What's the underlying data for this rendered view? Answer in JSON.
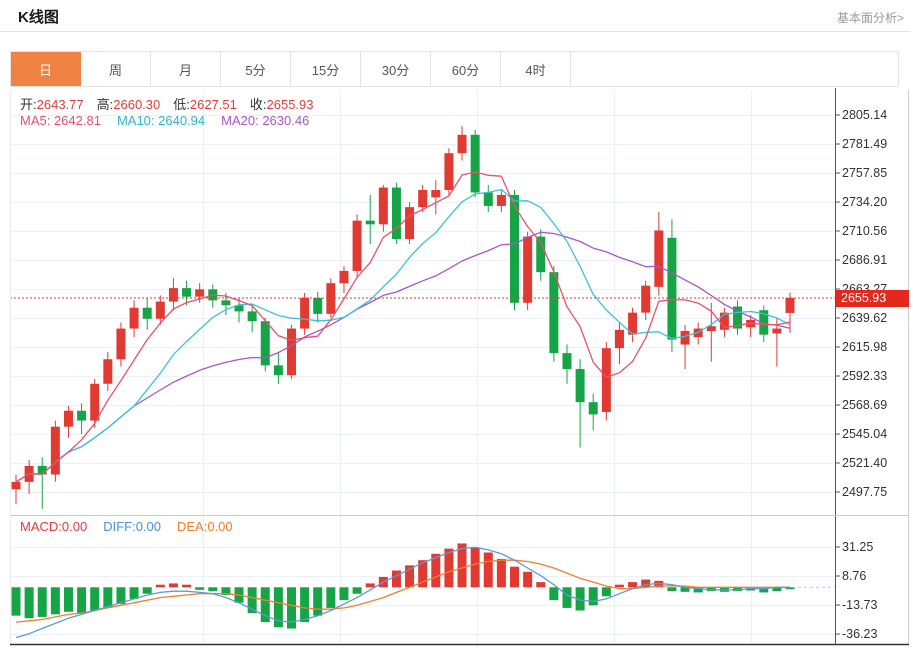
{
  "header": {
    "title": "K线图",
    "link": "基本面分析>"
  },
  "tabs": {
    "items": [
      "日",
      "周",
      "月",
      "5分",
      "15分",
      "30分",
      "60分",
      "4时"
    ],
    "active_index": 0
  },
  "ohlc": {
    "open_label": "开:",
    "open": "2643.77",
    "high_label": "高:",
    "high": "2660.30",
    "low_label": "低:",
    "low": "2627.51",
    "close_label": "收:",
    "close": "2655.93"
  },
  "ma": {
    "ma5": "MA5: 2642.81",
    "ma10": "MA10: 2640.94",
    "ma20": "MA20: 2630.46"
  },
  "macd_labels": {
    "macd": "MACD:0.00",
    "diff": "DIFF:0.00",
    "dea": "DEA:0.00"
  },
  "price_badge": "2655.93",
  "colors": {
    "up": "#e03a33",
    "down": "#16a447",
    "ma5": "#e8506e",
    "ma10": "#3cc2d4",
    "ma20": "#aa55c8",
    "diff_line": "#5b9bd5",
    "dea_line": "#ef8030",
    "accent_tab": "#f08343",
    "badge": "#e5281e",
    "grid": "#edf1f7",
    "axis": "#555555",
    "dotted_price": "#e23b3b",
    "zero_ext": "#8fd8e8"
  },
  "chart_data": {
    "type": "candlestick",
    "title": "K线图 (日)",
    "legend": [
      "MA5",
      "MA10",
      "MA20",
      "DIFF",
      "DEA",
      "MACD"
    ],
    "y_axis_ticks": [
      2805.14,
      2781.49,
      2757.85,
      2734.2,
      2710.56,
      2686.91,
      2663.27,
      2639.62,
      2615.98,
      2592.33,
      2568.69,
      2545.04,
      2521.4,
      2497.75
    ],
    "current_price": 2655.93,
    "ma_periods": [
      5,
      10,
      20
    ],
    "candles": [
      [
        2500,
        2512,
        2488,
        2506
      ],
      [
        2506,
        2524,
        2496,
        2519
      ],
      [
        2519,
        2526,
        2484,
        2512
      ],
      [
        2512,
        2556,
        2506,
        2551
      ],
      [
        2551,
        2568,
        2542,
        2564
      ],
      [
        2564,
        2570,
        2545,
        2556
      ],
      [
        2556,
        2590,
        2550,
        2586
      ],
      [
        2586,
        2612,
        2580,
        2606
      ],
      [
        2606,
        2636,
        2600,
        2631
      ],
      [
        2631,
        2654,
        2624,
        2648
      ],
      [
        2648,
        2656,
        2630,
        2639
      ],
      [
        2639,
        2658,
        2634,
        2653
      ],
      [
        2653,
        2672,
        2646,
        2664
      ],
      [
        2664,
        2670,
        2650,
        2657
      ],
      [
        2657,
        2668,
        2652,
        2663
      ],
      [
        2663,
        2667,
        2648,
        2654
      ],
      [
        2654,
        2660,
        2642,
        2650
      ],
      [
        2650,
        2656,
        2636,
        2645
      ],
      [
        2645,
        2650,
        2628,
        2637
      ],
      [
        2637,
        2640,
        2596,
        2601
      ],
      [
        2601,
        2612,
        2586,
        2593
      ],
      [
        2593,
        2634,
        2590,
        2631
      ],
      [
        2631,
        2660,
        2626,
        2656
      ],
      [
        2656,
        2661,
        2636,
        2643
      ],
      [
        2643,
        2672,
        2640,
        2668
      ],
      [
        2668,
        2682,
        2660,
        2678
      ],
      [
        2678,
        2724,
        2672,
        2719
      ],
      [
        2719,
        2740,
        2700,
        2716
      ],
      [
        2716,
        2748,
        2710,
        2746
      ],
      [
        2746,
        2750,
        2700,
        2704
      ],
      [
        2704,
        2734,
        2700,
        2730
      ],
      [
        2730,
        2748,
        2726,
        2744
      ],
      [
        2738,
        2752,
        2724,
        2744
      ],
      [
        2744,
        2778,
        2740,
        2774
      ],
      [
        2774,
        2796,
        2768,
        2789
      ],
      [
        2789,
        2793,
        2738,
        2742
      ],
      [
        2742,
        2748,
        2726,
        2731
      ],
      [
        2731,
        2744,
        2726,
        2740
      ],
      [
        2740,
        2744,
        2646,
        2652
      ],
      [
        2652,
        2710,
        2646,
        2706
      ],
      [
        2706,
        2712,
        2670,
        2677
      ],
      [
        2677,
        2682,
        2604,
        2611
      ],
      [
        2611,
        2618,
        2586,
        2598
      ],
      [
        2598,
        2606,
        2534,
        2571
      ],
      [
        2571,
        2578,
        2548,
        2561
      ],
      [
        2563,
        2620,
        2556,
        2615
      ],
      [
        2615,
        2636,
        2602,
        2630
      ],
      [
        2626,
        2648,
        2620,
        2644
      ],
      [
        2644,
        2670,
        2638,
        2666
      ],
      [
        2665,
        2726,
        2658,
        2711
      ],
      [
        2705,
        2720,
        2612,
        2622
      ],
      [
        2618,
        2634,
        2598,
        2629
      ],
      [
        2624,
        2636,
        2618,
        2631
      ],
      [
        2629,
        2652,
        2604,
        2633
      ],
      [
        2630,
        2648,
        2624,
        2644
      ],
      [
        2649,
        2654,
        2626,
        2631
      ],
      [
        2632,
        2642,
        2624,
        2638
      ],
      [
        2646,
        2650,
        2620,
        2626
      ],
      [
        2627,
        2640,
        2600,
        2631
      ],
      [
        2643.77,
        2660.3,
        2627.51,
        2655.93
      ]
    ],
    "macd": {
      "y_axis_ticks": [
        31.25,
        8.76,
        -13.73,
        -36.23
      ],
      "hist": [
        -22,
        -24,
        -23,
        -21,
        -19,
        -20,
        -18,
        -16,
        -13,
        -9,
        -5,
        2,
        3,
        2,
        -2,
        -3,
        -6,
        -12,
        -20,
        -27,
        -31,
        -32,
        -27,
        -22,
        -16,
        -10,
        -5,
        3,
        8,
        13,
        17,
        21,
        26,
        30,
        34,
        31,
        27,
        22,
        16,
        12,
        4,
        -10,
        -16,
        -18,
        -14,
        -7,
        2,
        4,
        6,
        5,
        -3,
        -3.5,
        -4,
        -3,
        -3.5,
        -3,
        -2.5,
        -4,
        -3,
        -1.5
      ],
      "diff": [
        -39,
        -36,
        -32,
        -28,
        -24,
        -21,
        -18,
        -15,
        -12,
        -9,
        -6,
        -4,
        -3,
        -3,
        -4,
        -5,
        -8,
        -12,
        -17,
        -22,
        -26,
        -27,
        -25,
        -22,
        -18,
        -13,
        -8,
        -2,
        4,
        9,
        14,
        19,
        23,
        27,
        30,
        31,
        29,
        26,
        21,
        15,
        9,
        2,
        -6,
        -10,
        -11,
        -9,
        -5,
        -1,
        2,
        3,
        2,
        0,
        -1,
        -2,
        -2,
        -2,
        -1,
        -1,
        0,
        0
      ],
      "dea": [
        -27,
        -26,
        -25,
        -23,
        -21,
        -20,
        -18,
        -16,
        -14,
        -12,
        -10,
        -8,
        -7,
        -6,
        -5,
        -5,
        -5,
        -6,
        -8,
        -10,
        -12,
        -14,
        -16,
        -17,
        -17,
        -16,
        -14,
        -11,
        -8,
        -4,
        0,
        4,
        8,
        12,
        15,
        18,
        20,
        21,
        21,
        20,
        18,
        15,
        11,
        7,
        4,
        1,
        -1,
        -1,
        0,
        1,
        1,
        1,
        0,
        0,
        0,
        0,
        0,
        0,
        0,
        0
      ]
    }
  }
}
